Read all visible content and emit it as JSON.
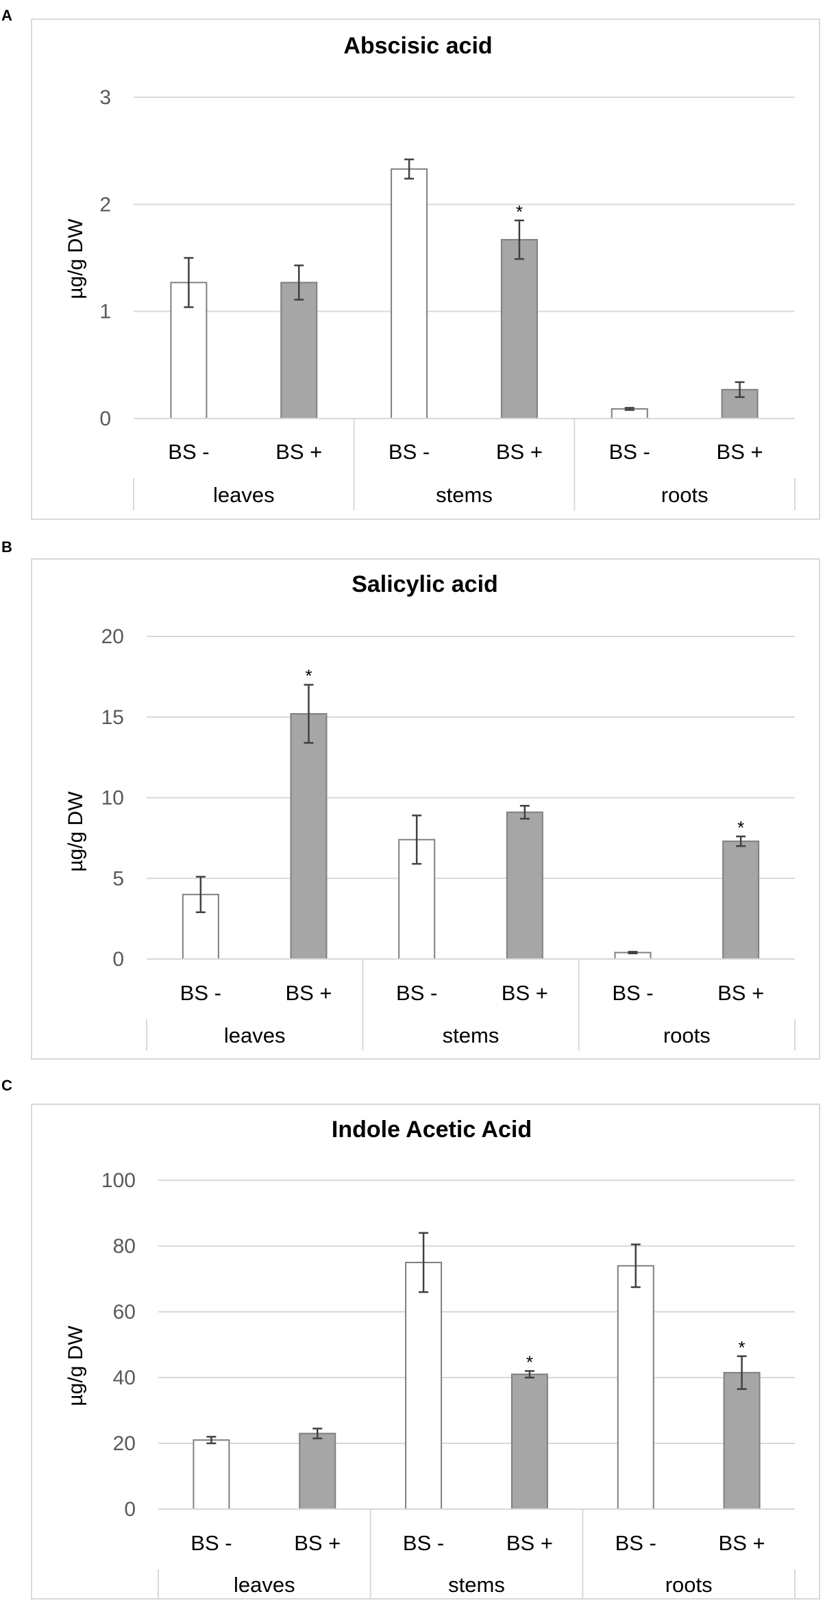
{
  "panels": [
    {
      "letter": "A"
    },
    {
      "letter": "B"
    },
    {
      "letter": "C"
    }
  ],
  "chart_data": [
    {
      "type": "bar",
      "title": "Abscisic acid",
      "ylabel": "µg/g DW",
      "ylim": [
        0,
        3
      ],
      "yticks": [
        "0",
        "1",
        "2",
        "3"
      ],
      "categories": [
        "BS -",
        "BS +",
        "BS -",
        "BS +",
        "BS -",
        "BS +"
      ],
      "groups": [
        "leaves",
        "stems",
        "roots"
      ],
      "values": [
        1.27,
        1.27,
        2.33,
        1.67,
        0.09,
        0.27
      ],
      "errors": [
        0.23,
        0.16,
        0.09,
        0.18,
        0.01,
        0.07
      ],
      "fills": [
        "#ffffff",
        "#a6a6a6",
        "#ffffff",
        "#a6a6a6",
        "#ffffff",
        "#a6a6a6"
      ],
      "significance": [
        "",
        "",
        "",
        "*",
        "",
        ""
      ],
      "grid": true
    },
    {
      "type": "bar",
      "title": "Salicylic acid",
      "ylabel": "µg/g DW",
      "ylim": [
        0,
        20
      ],
      "yticks": [
        "0",
        "5",
        "10",
        "15",
        "20"
      ],
      "categories": [
        "BS -",
        "BS +",
        "BS -",
        "BS +",
        "BS -",
        "BS +"
      ],
      "groups": [
        "leaves",
        "stems",
        "roots"
      ],
      "values": [
        4.0,
        15.2,
        7.4,
        9.1,
        0.4,
        7.3
      ],
      "errors": [
        1.1,
        1.8,
        1.5,
        0.4,
        0.05,
        0.3
      ],
      "fills": [
        "#ffffff",
        "#a6a6a6",
        "#ffffff",
        "#a6a6a6",
        "#ffffff",
        "#a6a6a6"
      ],
      "significance": [
        "",
        "*",
        "",
        "",
        "",
        "*"
      ],
      "grid": true
    },
    {
      "type": "bar",
      "title": "Indole Acetic Acid",
      "ylabel": "µg/g DW",
      "ylim": [
        0,
        100
      ],
      "yticks": [
        "0",
        "20",
        "40",
        "60",
        "80",
        "100"
      ],
      "categories": [
        "BS -",
        "BS +",
        "BS -",
        "BS +",
        "BS -",
        "BS +"
      ],
      "groups": [
        "leaves",
        "stems",
        "roots"
      ],
      "values": [
        21,
        23,
        75,
        41,
        74,
        41.5
      ],
      "errors": [
        1,
        1.5,
        9,
        1,
        6.5,
        5
      ],
      "fills": [
        "#ffffff",
        "#a6a6a6",
        "#ffffff",
        "#a6a6a6",
        "#ffffff",
        "#a6a6a6"
      ],
      "significance": [
        "",
        "",
        "",
        "*",
        "",
        "*"
      ],
      "grid": true
    }
  ]
}
